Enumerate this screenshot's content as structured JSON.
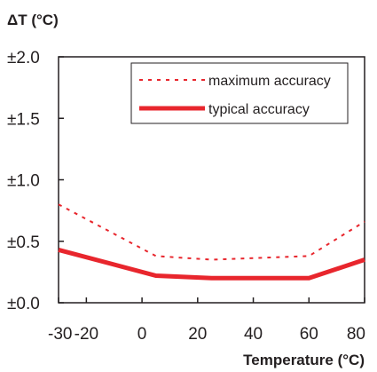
{
  "chart_data": {
    "type": "line",
    "ylabel": "ΔT (°C)",
    "xlabel": "Temperature (°C)",
    "xlim": [
      -30,
      80
    ],
    "ylim": [
      0,
      2
    ],
    "x_ticks": [
      -30,
      -20,
      0,
      20,
      40,
      60,
      80
    ],
    "x_tick_labels": [
      "-30",
      "-20",
      "0",
      "20",
      "40",
      "60",
      "80"
    ],
    "y_ticks": [
      0,
      0.5,
      1.0,
      1.5,
      2.0
    ],
    "y_tick_labels": [
      "±0.0",
      "±0.5",
      "±1.0",
      "±1.5",
      "±2.0"
    ],
    "grid": false,
    "legend_position": "top-right",
    "series": [
      {
        "name": "maximum accuracy",
        "style": "dotted",
        "color": "#e8262d",
        "x": [
          -30,
          5,
          25,
          60,
          80
        ],
        "y": [
          0.8,
          0.38,
          0.35,
          0.38,
          0.66
        ]
      },
      {
        "name": "typical accuracy",
        "style": "solid-thick",
        "color": "#e8262d",
        "x": [
          -30,
          5,
          25,
          60,
          80
        ],
        "y": [
          0.43,
          0.22,
          0.2,
          0.2,
          0.35
        ]
      }
    ]
  }
}
